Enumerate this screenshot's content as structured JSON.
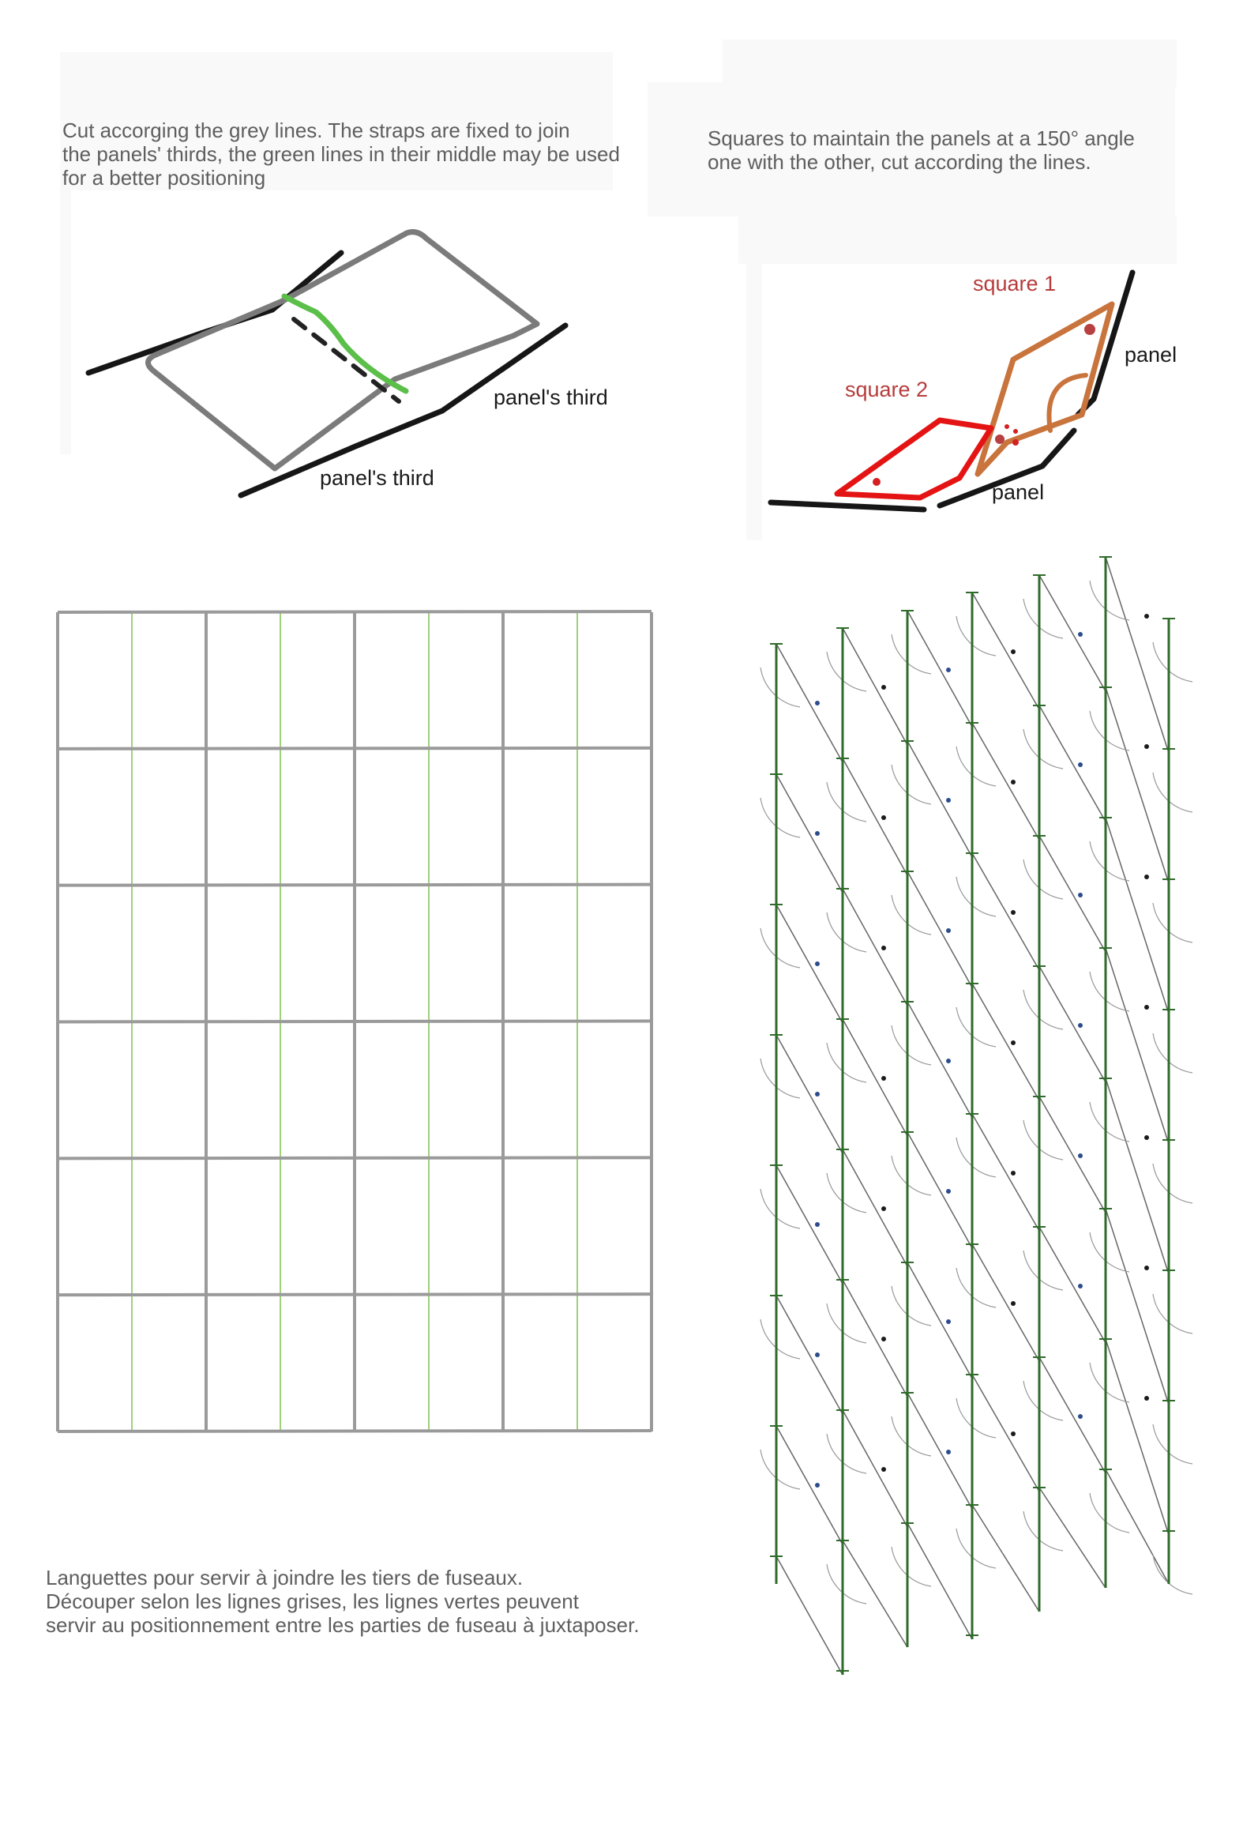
{
  "instructions_en": {
    "lines": [
      "Cut accorging the grey lines. The straps are fixed to join",
      "the panels' thirds, the green lines in their middle may be used",
      "for a better positioning"
    ]
  },
  "instructions_squares": {
    "lines": [
      "Squares to maintain the panels at a 150° angle",
      "one with the other, cut according the lines."
    ]
  },
  "sketch_straps": {
    "label_third_right": "panel's third",
    "label_third_bottom": "panel's third"
  },
  "sketch_squares": {
    "label_square1": "square 1",
    "label_square2": "square 2",
    "label_panel_top": "panel",
    "label_panel_bottom": "panel"
  },
  "instructions_fr": {
    "lines": [
      "Languettes pour servir à joindre les tiers de fuseaux.",
      "Découper selon les lignes grises, les lignes vertes peuvent",
      "servir au positionnement entre les parties de fuseau à juxtaposer."
    ]
  },
  "strap_grid": {
    "columns": 4,
    "rows": 6,
    "cut_line_color": "#9a9a9a",
    "guide_line_color": "#9fd07a"
  },
  "square_pattern": {
    "columns": 6,
    "rows": 7,
    "line_color": "#2f6b2a",
    "dot_colors": [
      "#1b1b1b",
      "#2c4c8c"
    ]
  },
  "colors": {
    "text": "#5e5e5e",
    "grey_strap": "#7b7b7b",
    "green_guide": "#5bbf4a",
    "square1": "#c8743c",
    "square2": "#e41414"
  }
}
